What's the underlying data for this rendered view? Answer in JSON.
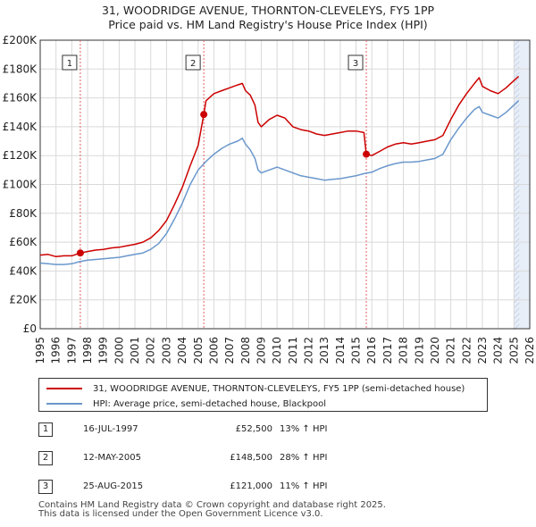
{
  "chart_data": {
    "type": "line",
    "title": "31, WOODRIDGE AVENUE, THORNTON-CLEVELEYS, FY5 1PP",
    "subtitle": "Price paid vs. HM Land Registry's House Price Index (HPI)",
    "xlim": [
      1995,
      2026
    ],
    "ylim": [
      0,
      200000
    ],
    "x_ticks": [
      1995,
      1996,
      1997,
      1998,
      1999,
      2000,
      2001,
      2002,
      2003,
      2004,
      2005,
      2006,
      2007,
      2008,
      2009,
      2010,
      2011,
      2012,
      2013,
      2014,
      2015,
      2016,
      2017,
      2018,
      2019,
      2020,
      2021,
      2022,
      2023,
      2024,
      2025,
      2026
    ],
    "y_ticks": [
      0,
      20000,
      40000,
      60000,
      80000,
      100000,
      120000,
      140000,
      160000,
      180000,
      200000
    ],
    "y_tick_labels": [
      "£0",
      "£20K",
      "£40K",
      "£60K",
      "£80K",
      "£100K",
      "£120K",
      "£140K",
      "£160K",
      "£180K",
      "£200K"
    ],
    "grid": true,
    "future_shade_from": 2025.0,
    "colors": {
      "property": "#cc0000",
      "hpi": "#6a97cc",
      "shade": "#e8eef8",
      "vline": "#e06060"
    },
    "series": [
      {
        "name": "31, WOODRIDGE AVENUE, THORNTON-CLEVELEYS, FY5 1PP (semi-detached house)",
        "key": "property",
        "points": [
          [
            1995.0,
            51000
          ],
          [
            1995.5,
            51500
          ],
          [
            1996.0,
            50000
          ],
          [
            1996.5,
            50500
          ],
          [
            1997.0,
            50500
          ],
          [
            1997.54,
            52500
          ],
          [
            1998.0,
            53500
          ],
          [
            1998.5,
            54500
          ],
          [
            1999.0,
            55000
          ],
          [
            1999.5,
            56000
          ],
          [
            2000.0,
            56500
          ],
          [
            2000.5,
            57500
          ],
          [
            2001.0,
            58500
          ],
          [
            2001.5,
            60000
          ],
          [
            2002.0,
            63000
          ],
          [
            2002.5,
            68000
          ],
          [
            2003.0,
            75000
          ],
          [
            2003.5,
            86000
          ],
          [
            2004.0,
            98000
          ],
          [
            2004.5,
            113000
          ],
          [
            2005.0,
            127000
          ],
          [
            2005.36,
            148500
          ],
          [
            2005.5,
            158000
          ],
          [
            2006.0,
            163000
          ],
          [
            2006.5,
            165000
          ],
          [
            2007.0,
            167000
          ],
          [
            2007.5,
            169000
          ],
          [
            2007.8,
            170000
          ],
          [
            2008.0,
            165000
          ],
          [
            2008.3,
            162000
          ],
          [
            2008.6,
            155000
          ],
          [
            2008.8,
            143000
          ],
          [
            2009.0,
            140000
          ],
          [
            2009.5,
            145000
          ],
          [
            2010.0,
            148000
          ],
          [
            2010.5,
            146000
          ],
          [
            2011.0,
            140000
          ],
          [
            2011.5,
            138000
          ],
          [
            2012.0,
            137000
          ],
          [
            2012.5,
            135000
          ],
          [
            2013.0,
            134000
          ],
          [
            2013.5,
            135000
          ],
          [
            2014.0,
            136000
          ],
          [
            2014.5,
            137000
          ],
          [
            2015.0,
            137000
          ],
          [
            2015.5,
            136000
          ],
          [
            2015.65,
            121000
          ],
          [
            2016.0,
            120000
          ],
          [
            2016.5,
            123000
          ],
          [
            2017.0,
            126000
          ],
          [
            2017.5,
            128000
          ],
          [
            2018.0,
            129000
          ],
          [
            2018.5,
            128000
          ],
          [
            2019.0,
            129000
          ],
          [
            2019.5,
            130000
          ],
          [
            2020.0,
            131000
          ],
          [
            2020.5,
            134000
          ],
          [
            2021.0,
            145000
          ],
          [
            2021.5,
            155000
          ],
          [
            2022.0,
            163000
          ],
          [
            2022.5,
            170000
          ],
          [
            2022.8,
            174000
          ],
          [
            2023.0,
            168000
          ],
          [
            2023.5,
            165000
          ],
          [
            2024.0,
            163000
          ],
          [
            2024.5,
            167000
          ],
          [
            2025.0,
            172000
          ],
          [
            2025.3,
            175000
          ]
        ]
      },
      {
        "name": "HPI: Average price, semi-detached house, Blackpool",
        "key": "hpi",
        "points": [
          [
            1995.0,
            45500
          ],
          [
            1995.5,
            45000
          ],
          [
            1996.0,
            44500
          ],
          [
            1996.5,
            44500
          ],
          [
            1997.0,
            45000
          ],
          [
            1997.5,
            46500
          ],
          [
            1998.0,
            47500
          ],
          [
            1998.5,
            48000
          ],
          [
            1999.0,
            48500
          ],
          [
            1999.5,
            49000
          ],
          [
            2000.0,
            49500
          ],
          [
            2000.5,
            50500
          ],
          [
            2001.0,
            51500
          ],
          [
            2001.5,
            52500
          ],
          [
            2002.0,
            55000
          ],
          [
            2002.5,
            59000
          ],
          [
            2003.0,
            66000
          ],
          [
            2003.5,
            76000
          ],
          [
            2004.0,
            87000
          ],
          [
            2004.5,
            100000
          ],
          [
            2005.0,
            110000
          ],
          [
            2005.5,
            116000
          ],
          [
            2006.0,
            121000
          ],
          [
            2006.5,
            125000
          ],
          [
            2007.0,
            128000
          ],
          [
            2007.5,
            130000
          ],
          [
            2007.8,
            132000
          ],
          [
            2008.0,
            128000
          ],
          [
            2008.3,
            124000
          ],
          [
            2008.6,
            118000
          ],
          [
            2008.8,
            110000
          ],
          [
            2009.0,
            108000
          ],
          [
            2009.5,
            110000
          ],
          [
            2010.0,
            112000
          ],
          [
            2010.5,
            110000
          ],
          [
            2011.0,
            108000
          ],
          [
            2011.5,
            106000
          ],
          [
            2012.0,
            105000
          ],
          [
            2012.5,
            104000
          ],
          [
            2013.0,
            103000
          ],
          [
            2013.5,
            103500
          ],
          [
            2014.0,
            104000
          ],
          [
            2014.5,
            105000
          ],
          [
            2015.0,
            106000
          ],
          [
            2015.5,
            107500
          ],
          [
            2016.0,
            108500
          ],
          [
            2016.5,
            111000
          ],
          [
            2017.0,
            113000
          ],
          [
            2017.5,
            114500
          ],
          [
            2018.0,
            115500
          ],
          [
            2018.5,
            115500
          ],
          [
            2019.0,
            116000
          ],
          [
            2019.5,
            117000
          ],
          [
            2020.0,
            118000
          ],
          [
            2020.5,
            121000
          ],
          [
            2021.0,
            131000
          ],
          [
            2021.5,
            139000
          ],
          [
            2022.0,
            146000
          ],
          [
            2022.5,
            152000
          ],
          [
            2022.8,
            154000
          ],
          [
            2023.0,
            150000
          ],
          [
            2023.5,
            148000
          ],
          [
            2024.0,
            146000
          ],
          [
            2024.5,
            150000
          ],
          [
            2025.0,
            155000
          ],
          [
            2025.3,
            158000
          ]
        ]
      }
    ],
    "sales": [
      {
        "number": "1",
        "x": 1997.54,
        "price_value": 52500,
        "date": "16-JUL-1997",
        "price": "£52,500",
        "hpi_change": "13% ↑ HPI"
      },
      {
        "number": "2",
        "x": 2005.36,
        "price_value": 148500,
        "date": "12-MAY-2005",
        "price": "£148,500",
        "hpi_change": "28% ↑ HPI"
      },
      {
        "number": "3",
        "x": 2015.65,
        "price_value": 121000,
        "date": "25-AUG-2015",
        "price": "£121,000",
        "hpi_change": "11% ↑ HPI"
      }
    ]
  },
  "legend": {
    "property_label": "31, WOODRIDGE AVENUE, THORNTON-CLEVELEYS, FY5 1PP (semi-detached house)",
    "hpi_label": "HPI: Average price, semi-detached house, Blackpool"
  },
  "footer": {
    "line1": "Contains HM Land Registry data © Crown copyright and database right 2025.",
    "line2": "This data is licensed under the Open Government Licence v3.0."
  }
}
